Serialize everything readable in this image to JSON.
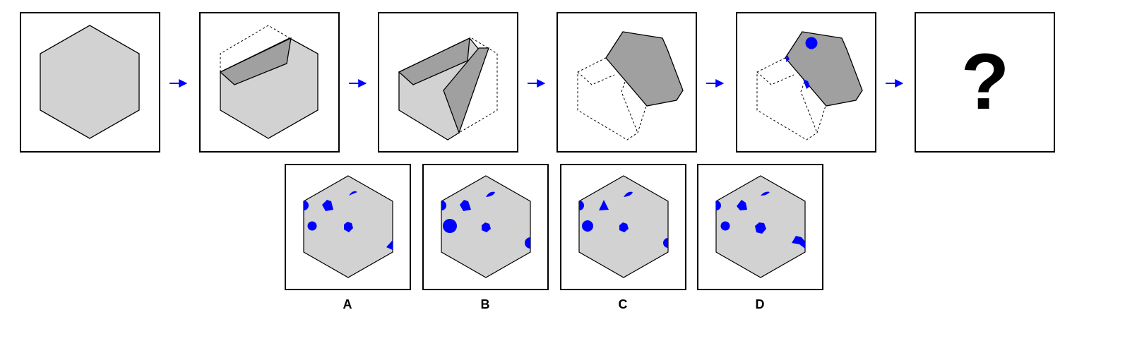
{
  "colors": {
    "background": "#ffffff",
    "panel_border": "#000000",
    "paper_fill": "#d2d2d2",
    "folded_flap_fill": "#a0a0a0",
    "hole_fill": "#0000ff",
    "arrow": "#0000ff"
  },
  "sequence": {
    "step_count": 6,
    "arrows": [
      "→",
      "→",
      "→",
      "→",
      "→"
    ],
    "question_label": "?"
  },
  "options": {
    "labels": [
      "A",
      "B",
      "C",
      "D"
    ]
  }
}
